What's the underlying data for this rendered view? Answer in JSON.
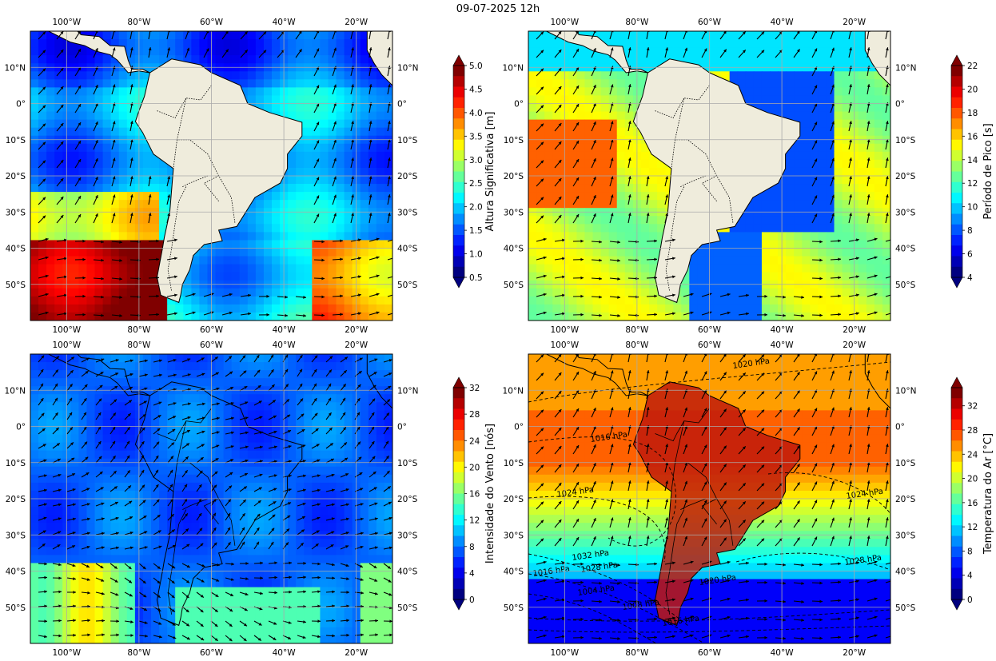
{
  "title": "09-07-2025 12h",
  "lon_labels": [
    "100°W",
    "80°W",
    "60°W",
    "40°W",
    "20°W"
  ],
  "lat_labels": [
    "10°N",
    "0°",
    "10°S",
    "20°S",
    "30°S",
    "40°S",
    "50°S"
  ],
  "panels": [
    {
      "id": "wave-height",
      "colorbar_label": "Altura Significativa [m]",
      "colorbar_ticks": [
        "0.5",
        "1.0",
        "1.5",
        "2.0",
        "2.5",
        "3.0",
        "3.5",
        "4.0",
        "4.5",
        "5.0"
      ],
      "colorbar_range": [
        0.5,
        5.0
      ],
      "contour_labels": []
    },
    {
      "id": "peak-period",
      "colorbar_label": "Período de Pico [s]",
      "colorbar_ticks": [
        "4",
        "6",
        "8",
        "10",
        "12",
        "14",
        "16",
        "18",
        "20",
        "22"
      ],
      "colorbar_range": [
        4,
        22
      ],
      "contour_labels": []
    },
    {
      "id": "wind-speed",
      "colorbar_label": "Intensidade do Vento [nós]",
      "colorbar_ticks": [
        "0",
        "4",
        "8",
        "12",
        "16",
        "20",
        "24",
        "28",
        "32"
      ],
      "colorbar_range": [
        0,
        32
      ],
      "contour_labels": []
    },
    {
      "id": "air-temperature",
      "colorbar_label": "Temperatura do Ar [°C]",
      "colorbar_ticks": [
        "0",
        "4",
        "8",
        "12",
        "16",
        "20",
        "24",
        "28",
        "32"
      ],
      "colorbar_range": [
        0,
        35
      ],
      "contour_labels": [
        "1020 hPa",
        "1016 hPa",
        "1024 hPa",
        "1024 hPa",
        "1032 hPa",
        "1028 hPa",
        "1016 hPa",
        "1020 hPa",
        "1028 hPa",
        "1004 hPa",
        "1008 hPa",
        "1016 hPa"
      ]
    }
  ]
}
